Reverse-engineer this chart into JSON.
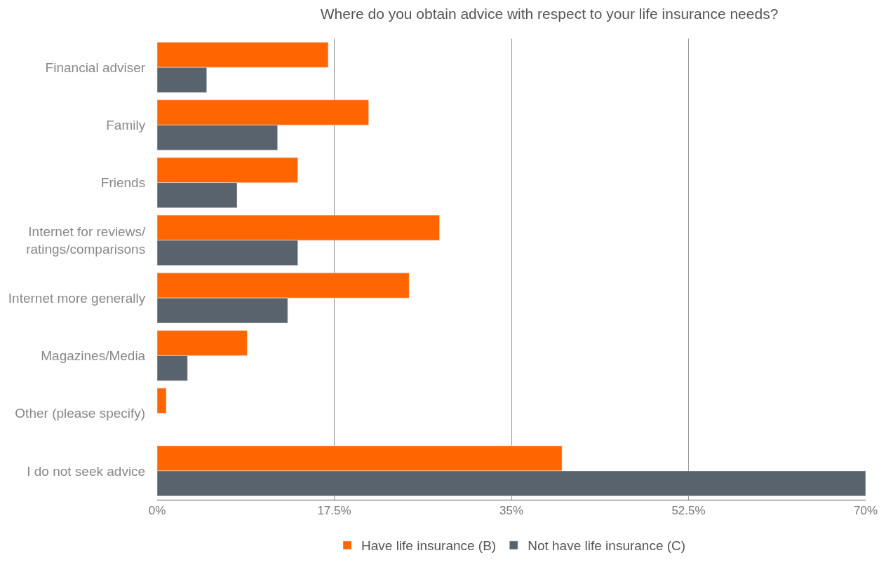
{
  "chart_data": {
    "type": "bar",
    "orientation": "horizontal",
    "title": "Where do you obtain advice with respect to your life insurance needs?",
    "categories": [
      "Financial adviser",
      "Family",
      "Friends",
      "Internet for reviews/\nratings/comparisons",
      "Internet more generally",
      "Magazines/Media",
      "Other (please specify)",
      "I do not seek advice"
    ],
    "series": [
      {
        "name": "Have life insurance (B)",
        "color": "#ff6600",
        "values": [
          16.9,
          20.9,
          13.9,
          27.9,
          24.9,
          8.9,
          0.9,
          40.0
        ]
      },
      {
        "name": "Not have life insurance (C)",
        "color": "#59636d",
        "values": [
          4.9,
          11.9,
          7.9,
          13.9,
          12.9,
          3.0,
          null,
          70.0
        ]
      }
    ],
    "xlim": [
      0,
      70
    ],
    "xticks": [
      {
        "value": 0,
        "label": "0%"
      },
      {
        "value": 17.5,
        "label": "17.5%"
      },
      {
        "value": 35,
        "label": "35%"
      },
      {
        "value": 52.5,
        "label": "52.5%"
      },
      {
        "value": 70,
        "label": "70%"
      }
    ],
    "grid": "x",
    "legend": "bottom"
  }
}
